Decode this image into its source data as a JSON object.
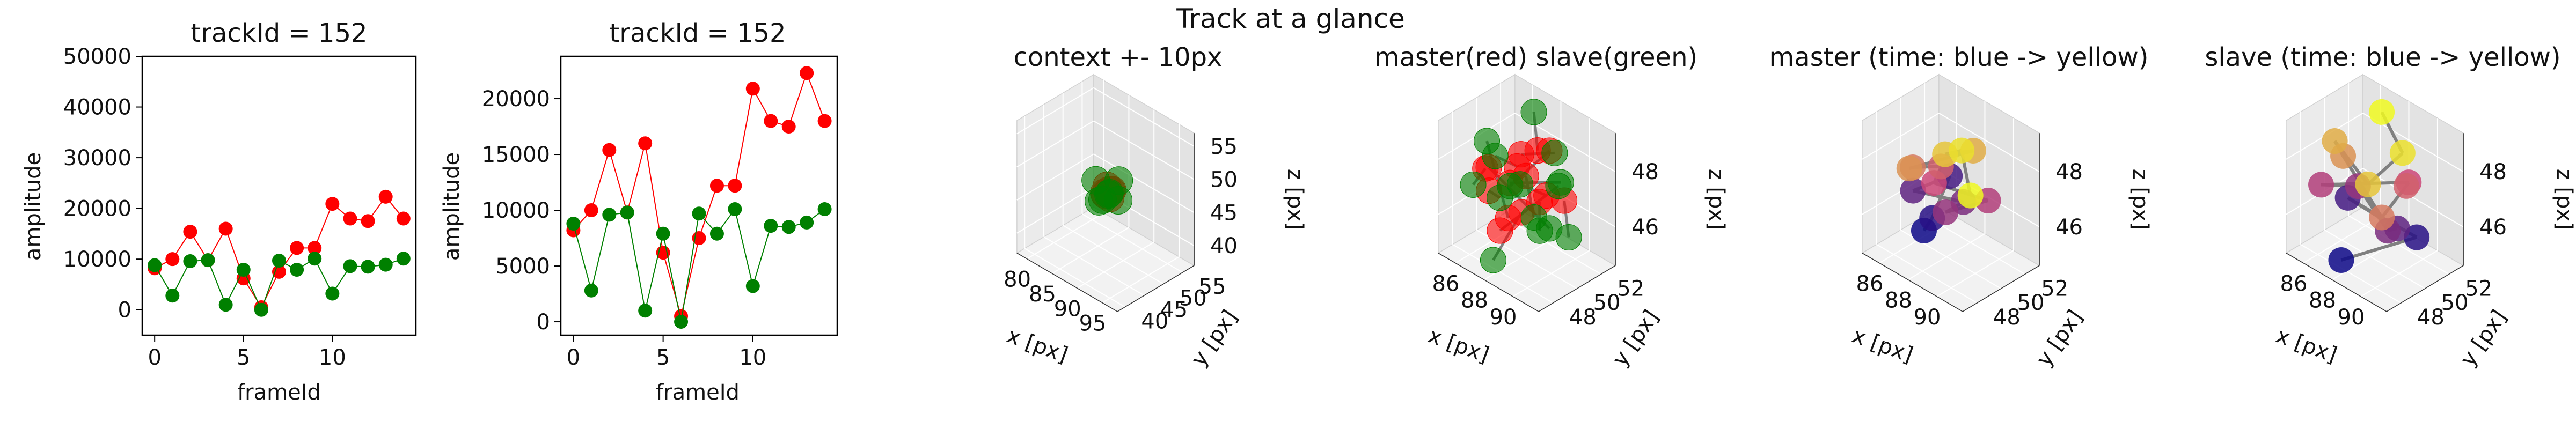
{
  "figure": {
    "suptitle": "Track at a glance"
  },
  "colors": {
    "master": "#ff0000",
    "slave": "#008000",
    "connector": "#808080",
    "plasma_start": "#0d0887",
    "plasma_mid": "#cc4778",
    "plasma_end": "#f0f921"
  },
  "chart_data": [
    {
      "type": "line",
      "title": "trackId = 152",
      "xlabel": "frameId",
      "ylabel": "amplitude",
      "xlim": [
        -0.7,
        14.7
      ],
      "ylim": [
        -5000,
        50000
      ],
      "xticks": [
        0,
        5,
        10
      ],
      "yticks": [
        0,
        10000,
        20000,
        30000,
        40000,
        50000
      ],
      "x": [
        0,
        1,
        2,
        3,
        4,
        5,
        6,
        7,
        8,
        9,
        10,
        11,
        12,
        13,
        14
      ],
      "series": [
        {
          "values": [
            8200,
            10000,
            15400,
            9800,
            16000,
            6200,
            500,
            7500,
            12200,
            12200,
            20900,
            18000,
            17500,
            22300,
            18000
          ],
          "color": "#ff0000"
        },
        {
          "values": [
            8800,
            2800,
            9600,
            9800,
            1000,
            7900,
            0,
            9700,
            7900,
            10100,
            3200,
            8600,
            8500,
            8900,
            10100
          ],
          "color": "#008000"
        }
      ]
    },
    {
      "type": "line",
      "title": "trackId = 152",
      "xlabel": "frameId",
      "ylabel": "amplitude",
      "xlim": [
        -0.7,
        14.7
      ],
      "ylim": [
        -1200,
        23800
      ],
      "xticks": [
        0,
        5,
        10
      ],
      "yticks": [
        0,
        5000,
        10000,
        15000,
        20000
      ],
      "x": [
        0,
        1,
        2,
        3,
        4,
        5,
        6,
        7,
        8,
        9,
        10,
        11,
        12,
        13,
        14
      ],
      "series": [
        {
          "values": [
            8200,
            10000,
            15400,
            9800,
            16000,
            6200,
            500,
            7500,
            12200,
            12200,
            20900,
            18000,
            17500,
            22300,
            18000
          ],
          "color": "#ff0000"
        },
        {
          "values": [
            8800,
            2800,
            9600,
            9800,
            1000,
            7900,
            0,
            9700,
            7900,
            10100,
            3200,
            8600,
            8500,
            8900,
            10100
          ],
          "color": "#008000"
        }
      ]
    },
    {
      "type": "scatter",
      "title": "context +- 10px",
      "xlabel": "x [px]",
      "ylabel": "y [px]",
      "zlabel": "z [px]",
      "xlim": [
        78,
        98
      ],
      "ylim": [
        38,
        58
      ],
      "zlim": [
        37,
        57
      ],
      "xticks": [
        80,
        85,
        90,
        95
      ],
      "yticks": [
        40,
        45,
        50,
        55
      ],
      "zticks": [
        40,
        45,
        50,
        55
      ],
      "series": [
        {
          "name": "master",
          "color": "#ff0000",
          "points": [
            [
              87.5,
              49,
              47.5
            ],
            [
              88.2,
              47.6,
              47.0
            ],
            [
              88.6,
              48.4,
              46.4
            ],
            [
              87.9,
              49.6,
              46.8
            ],
            [
              88.8,
              47.8,
              47.8
            ],
            [
              87.3,
              48.6,
              46.5
            ],
            [
              88.4,
              49.2,
              47.2
            ]
          ]
        },
        {
          "name": "slave",
          "color": "#008000",
          "points": [
            [
              86.2,
              47.8,
              48.2
            ],
            [
              89.6,
              49.2,
              46.2
            ],
            [
              87.1,
              50.2,
              45.8
            ],
            [
              89.2,
              47.2,
              47.6
            ],
            [
              86.8,
              48.8,
              45.2
            ],
            [
              88.8,
              50.4,
              48.4
            ],
            [
              87.6,
              46.8,
              46.0
            ]
          ]
        }
      ]
    },
    {
      "type": "scatter",
      "title": "master(red) slave(green)",
      "xlabel": "x [px]",
      "ylabel": "y [px]",
      "zlabel": "z [px]",
      "xlim": [
        84.8,
        91.8
      ],
      "ylim": [
        46.8,
        53.2
      ],
      "zlim": [
        44.6,
        49.4
      ],
      "xticks": [
        86,
        88,
        90
      ],
      "yticks": [
        48,
        50,
        52
      ],
      "zticks": [
        46,
        48
      ],
      "series": [
        {
          "name": "master",
          "color": "#ff0000",
          "points": [
            [
              86.5,
              49.0,
              46.8
            ],
            [
              87.2,
              50.5,
              47.5
            ],
            [
              88.1,
              48.0,
              46.1
            ],
            [
              87.8,
              51.5,
              48.0
            ],
            [
              88.6,
              49.2,
              46.6
            ],
            [
              86.9,
              48.5,
              47.9
            ],
            [
              89.2,
              50.8,
              48.6
            ],
            [
              88.0,
              52.0,
              46.3
            ],
            [
              87.5,
              47.5,
              48.3
            ],
            [
              89.6,
              49.5,
              47.2
            ],
            [
              86.3,
              51.0,
              46.5
            ],
            [
              88.9,
              48.8,
              48.9
            ],
            [
              87.0,
              50.0,
              45.7
            ],
            [
              89.9,
              51.2,
              46.9
            ],
            [
              88.4,
              49.8,
              47.7
            ]
          ]
        },
        {
          "name": "slave",
          "color": "#008000",
          "points": [
            [
              86.0,
              50.5,
              46.0
            ],
            [
              87.6,
              48.2,
              48.6
            ],
            [
              89.0,
              51.8,
              47.0
            ],
            [
              86.7,
              52.5,
              48.8
            ],
            [
              88.3,
              47.2,
              45.3
            ],
            [
              90.2,
              49.6,
              46.4
            ],
            [
              87.3,
              49.8,
              47.0
            ],
            [
              89.5,
              48.0,
              48.2
            ],
            [
              86.4,
              47.8,
              47.3
            ],
            [
              88.7,
              50.6,
              45.6
            ],
            [
              90.5,
              50.2,
              48.0
            ],
            [
              87.9,
              52.8,
              47.6
            ],
            [
              86.1,
              49.3,
              48.4
            ],
            [
              89.3,
              52.3,
              45.1
            ],
            [
              90.8,
              47.6,
              47.5
            ]
          ]
        }
      ]
    },
    {
      "type": "scatter",
      "title": "master (time: blue -> yellow)",
      "xlabel": "x [px]",
      "ylabel": "y [px]",
      "zlabel": "z [px]",
      "xlim": [
        84.8,
        91.8
      ],
      "ylim": [
        46.8,
        53.2
      ],
      "zlim": [
        44.6,
        49.4
      ],
      "xticks": [
        86,
        88,
        90
      ],
      "yticks": [
        48,
        50,
        52
      ],
      "zticks": [
        46,
        48
      ],
      "colormap": "plasma",
      "points": [
        [
          88.1,
          48.0,
          46.1
        ],
        [
          87.0,
          50.0,
          45.7
        ],
        [
          88.4,
          49.8,
          47.7
        ],
        [
          86.5,
          49.0,
          46.8
        ],
        [
          89.6,
          49.5,
          47.2
        ],
        [
          88.6,
          49.2,
          46.6
        ],
        [
          89.9,
          51.2,
          46.9
        ],
        [
          86.3,
          51.0,
          46.5
        ],
        [
          87.2,
          50.5,
          47.5
        ],
        [
          86.9,
          48.5,
          47.9
        ],
        [
          87.5,
          47.5,
          48.3
        ],
        [
          89.2,
          50.8,
          48.6
        ],
        [
          88.9,
          48.8,
          48.9
        ],
        [
          87.8,
          51.5,
          48.0
        ],
        [
          88.0,
          52.0,
          46.3
        ]
      ]
    },
    {
      "type": "scatter",
      "title": "slave (time: blue -> yellow)",
      "xlabel": "x [px]",
      "ylabel": "y [px]",
      "zlabel": "z [px]",
      "xlim": [
        84.8,
        91.8
      ],
      "ylim": [
        46.8,
        53.2
      ],
      "zlim": [
        44.6,
        49.4
      ],
      "xticks": [
        86,
        88,
        90
      ],
      "yticks": [
        48,
        50,
        52
      ],
      "zticks": [
        46,
        48
      ],
      "colormap": "plasma",
      "points": [
        [
          88.3,
          47.2,
          45.3
        ],
        [
          89.3,
          52.3,
          45.1
        ],
        [
          86.0,
          50.5,
          46.0
        ],
        [
          90.2,
          49.6,
          46.4
        ],
        [
          88.7,
          50.6,
          45.6
        ],
        [
          87.3,
          49.8,
          47.0
        ],
        [
          86.4,
          47.8,
          47.3
        ],
        [
          90.5,
          50.2,
          48.0
        ],
        [
          89.0,
          51.8,
          47.0
        ],
        [
          90.8,
          47.6,
          47.5
        ],
        [
          87.6,
          48.2,
          48.6
        ],
        [
          86.1,
          49.3,
          48.4
        ],
        [
          89.5,
          48.0,
          48.2
        ],
        [
          87.9,
          52.8,
          47.6
        ],
        [
          86.7,
          52.5,
          48.8
        ]
      ]
    }
  ]
}
